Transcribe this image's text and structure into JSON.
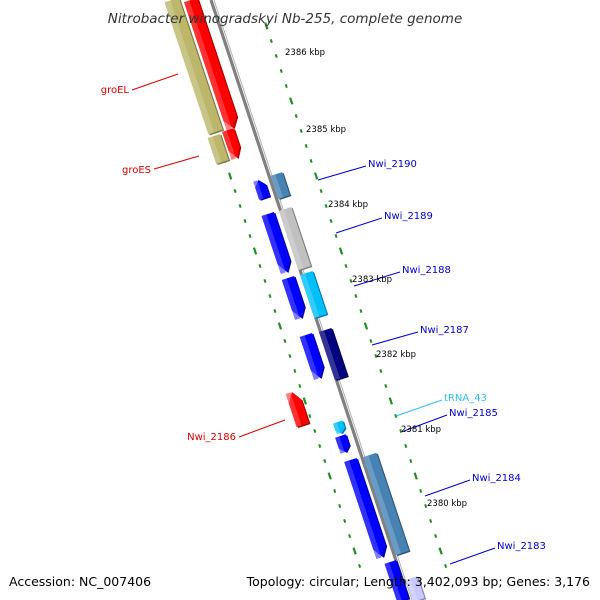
{
  "title": "Nitrobacter winogradskyi Nb-255, complete genome",
  "accession": "Accession: NC_007406",
  "topology": "Topology: circular; Length: 3,402,093 bp; Genes: 3,176",
  "kbp_labels": [
    "2386 kbp",
    "2385 kbp",
    "2384 kbp",
    "2383 kbp",
    "2382 kbp",
    "2381 kbp",
    "2380 kbp"
  ],
  "gene_labels": [
    "groEL",
    "groES",
    "Nwi_2186",
    "Nwi_2190",
    "Nwi_2189",
    "Nwi_2188",
    "Nwi_2187",
    "tRNA_43",
    "Nwi_2185",
    "Nwi_2184",
    "Nwi_2183"
  ],
  "colors": {
    "backbone": "#808080",
    "tick": "#228b22",
    "label_red": "#d40000",
    "label_blue": "#0000cc",
    "label_trna": "#33bbee",
    "khaki": "#bdb76b",
    "red": "#ff0000",
    "blue": "#0000ff",
    "steelblue": "#4682b4",
    "silver": "#c0c0c0",
    "skyblue": "#00bfff",
    "navy": "#000080",
    "lavender": "#c8c8ff"
  }
}
